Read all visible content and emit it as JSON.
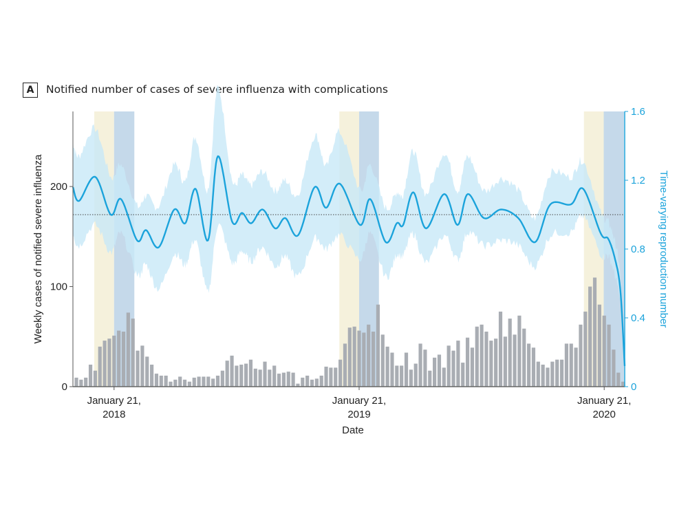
{
  "panel_label": "A",
  "chart_data": {
    "type": "bar+line",
    "title": "Notified number of cases of severe influenza with complications",
    "xlabel": "Date",
    "ylabel_left": "Weekly cases of notified severe influenza",
    "ylabel_right": "Time-varying reproduction number",
    "x_unit": "week index",
    "xlim": [
      0.27,
      117.35
    ],
    "ylim_left": [
      0,
      275
    ],
    "ylim_right": [
      0,
      1.6
    ],
    "yticks_left": [
      {
        "value": 0,
        "label": "0"
      },
      {
        "value": 100,
        "label": "100"
      },
      {
        "value": 200,
        "label": "200"
      }
    ],
    "yticks_right": [
      {
        "value": 0,
        "label": "0"
      },
      {
        "value": 0.4,
        "label": "0.4"
      },
      {
        "value": 0.8,
        "label": "0.8"
      },
      {
        "value": 1.2,
        "label": "1.2"
      },
      {
        "value": 1.6,
        "label": "1.6"
      }
    ],
    "xticks": [
      {
        "week": 9,
        "line1": "January 21,",
        "line2": "2018"
      },
      {
        "week": 61,
        "line1": "January 21,",
        "line2": "2019"
      },
      {
        "week": 113,
        "line1": "January 21,",
        "line2": "2020"
      }
    ],
    "reference_line": 1.0,
    "shaded_periods": [
      {
        "start": 4.8,
        "end": 9.0,
        "color": "#F5F1DC"
      },
      {
        "start": 9.0,
        "end": 13.3,
        "color": "#C5D9EA"
      },
      {
        "start": 56.8,
        "end": 61.0,
        "color": "#F5F1DC"
      },
      {
        "start": 61.0,
        "end": 65.2,
        "color": "#C5D9EA"
      },
      {
        "start": 108.7,
        "end": 112.9,
        "color": "#F5F1DC"
      },
      {
        "start": 112.9,
        "end": 117.2,
        "color": "#C5D9EA"
      }
    ],
    "bars": {
      "name": "Weekly cases",
      "color": "#A9ADB3",
      "values": [
        9,
        7,
        9,
        22,
        16,
        40,
        46,
        48,
        51,
        56,
        55,
        74,
        68,
        36,
        41,
        30,
        22,
        13,
        11,
        11,
        5,
        7,
        10,
        7,
        5,
        9,
        10,
        10,
        10,
        8,
        11,
        16,
        26,
        31,
        21,
        22,
        23,
        27,
        18,
        17,
        25,
        17,
        21,
        13,
        14,
        15,
        14,
        3,
        9,
        11,
        7,
        8,
        11,
        20,
        19,
        19,
        27,
        43,
        59,
        60,
        56,
        54,
        62,
        55,
        82,
        52,
        40,
        34,
        21,
        21,
        34,
        17,
        23,
        43,
        37,
        16,
        29,
        32,
        19,
        41,
        36,
        46,
        24,
        49,
        39,
        60,
        62,
        55,
        46,
        48,
        75,
        50,
        68,
        52,
        71,
        58,
        43,
        39,
        25,
        22,
        19,
        25,
        27,
        27,
        43,
        43,
        39,
        62,
        75,
        100,
        109,
        82,
        71,
        62,
        37,
        14,
        5
      ]
    },
    "rt": {
      "name": "Time-varying reproduction number",
      "color": "#1BA3DB",
      "ci_color": "#C8E9F7",
      "points": [
        [
          0.27,
          1.16
        ],
        [
          1.58,
          1.08
        ],
        [
          4.99,
          1.22
        ],
        [
          8.3,
          1.0
        ],
        [
          10.49,
          1.09
        ],
        [
          13.89,
          0.85
        ],
        [
          15.79,
          0.91
        ],
        [
          18.47,
          0.81
        ],
        [
          21.77,
          1.03
        ],
        [
          24.11,
          0.95
        ],
        [
          26.3,
          1.15
        ],
        [
          28.93,
          0.85
        ],
        [
          31.03,
          1.34
        ],
        [
          34.04,
          0.96
        ],
        [
          36.14,
          1.01
        ],
        [
          38.08,
          0.95
        ],
        [
          40.52,
          1.03
        ],
        [
          43.19,
          0.92
        ],
        [
          45.34,
          0.98
        ],
        [
          48.05,
          0.88
        ],
        [
          51.55,
          1.16
        ],
        [
          53.99,
          1.04
        ],
        [
          56.91,
          1.18
        ],
        [
          61.19,
          0.94
        ],
        [
          63.38,
          1.09
        ],
        [
          66.65,
          0.84
        ],
        [
          68.99,
          0.95
        ],
        [
          70.34,
          0.94
        ],
        [
          72.49,
          1.13
        ],
        [
          75.2,
          0.92
        ],
        [
          79.06,
          1.12
        ],
        [
          81.88,
          0.94
        ],
        [
          84.07,
          1.12
        ],
        [
          87.47,
          0.98
        ],
        [
          91.12,
          1.03
        ],
        [
          94.77,
          0.98
        ],
        [
          98.33,
          0.84
        ],
        [
          101.58,
          1.06
        ],
        [
          105.96,
          1.06
        ],
        [
          108.55,
          1.15
        ],
        [
          112.28,
          0.89
        ],
        [
          113.85,
          0.86
        ],
        [
          115.31,
          0.74
        ],
        [
          116.43,
          0.56
        ],
        [
          117.35,
          0.12
        ]
      ],
      "ci_halfwidth": [
        0.26,
        0.26,
        0.28,
        0.22,
        0.2,
        0.2,
        0.2,
        0.24,
        0.26,
        0.24,
        0.3,
        0.3,
        0.4,
        0.24,
        0.22,
        0.22,
        0.22,
        0.22,
        0.22,
        0.24,
        0.3,
        0.24,
        0.3,
        0.2,
        0.2,
        0.2,
        0.18,
        0.18,
        0.24,
        0.2,
        0.24,
        0.2,
        0.22,
        0.16,
        0.18,
        0.16,
        0.14,
        0.18,
        0.16,
        0.16,
        0.12,
        0.1,
        0.1,
        0.08,
        0.05
      ]
    }
  }
}
